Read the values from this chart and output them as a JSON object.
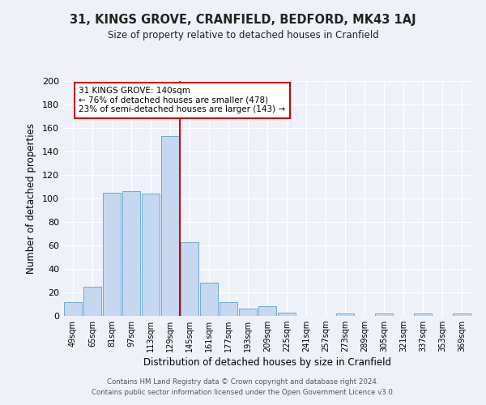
{
  "title": "31, KINGS GROVE, CRANFIELD, BEDFORD, MK43 1AJ",
  "subtitle": "Size of property relative to detached houses in Cranfield",
  "xlabel": "Distribution of detached houses by size in Cranfield",
  "ylabel": "Number of detached properties",
  "bar_labels": [
    "49sqm",
    "65sqm",
    "81sqm",
    "97sqm",
    "113sqm",
    "129sqm",
    "145sqm",
    "161sqm",
    "177sqm",
    "193sqm",
    "209sqm",
    "225sqm",
    "241sqm",
    "257sqm",
    "273sqm",
    "289sqm",
    "305sqm",
    "321sqm",
    "337sqm",
    "353sqm",
    "369sqm"
  ],
  "bar_heights": [
    12,
    25,
    105,
    106,
    104,
    153,
    63,
    28,
    12,
    6,
    8,
    3,
    0,
    0,
    2,
    0,
    2,
    0,
    2,
    0,
    2
  ],
  "bar_color": "#c5d8f0",
  "bar_edge_color": "#6aaad4",
  "vline_color": "#cc0000",
  "vline_index": 5.5,
  "annotation_text": "31 KINGS GROVE: 140sqm\n← 76% of detached houses are smaller (478)\n23% of semi-detached houses are larger (143) →",
  "annotation_box_facecolor": "#ffffff",
  "annotation_box_edgecolor": "#cc0000",
  "ylim": [
    0,
    200
  ],
  "yticks": [
    0,
    20,
    40,
    60,
    80,
    100,
    120,
    140,
    160,
    180,
    200
  ],
  "background_color": "#eef2f8",
  "grid_color": "#ffffff",
  "footer_line1": "Contains HM Land Registry data © Crown copyright and database right 2024.",
  "footer_line2": "Contains public sector information licensed under the Open Government Licence v3.0."
}
